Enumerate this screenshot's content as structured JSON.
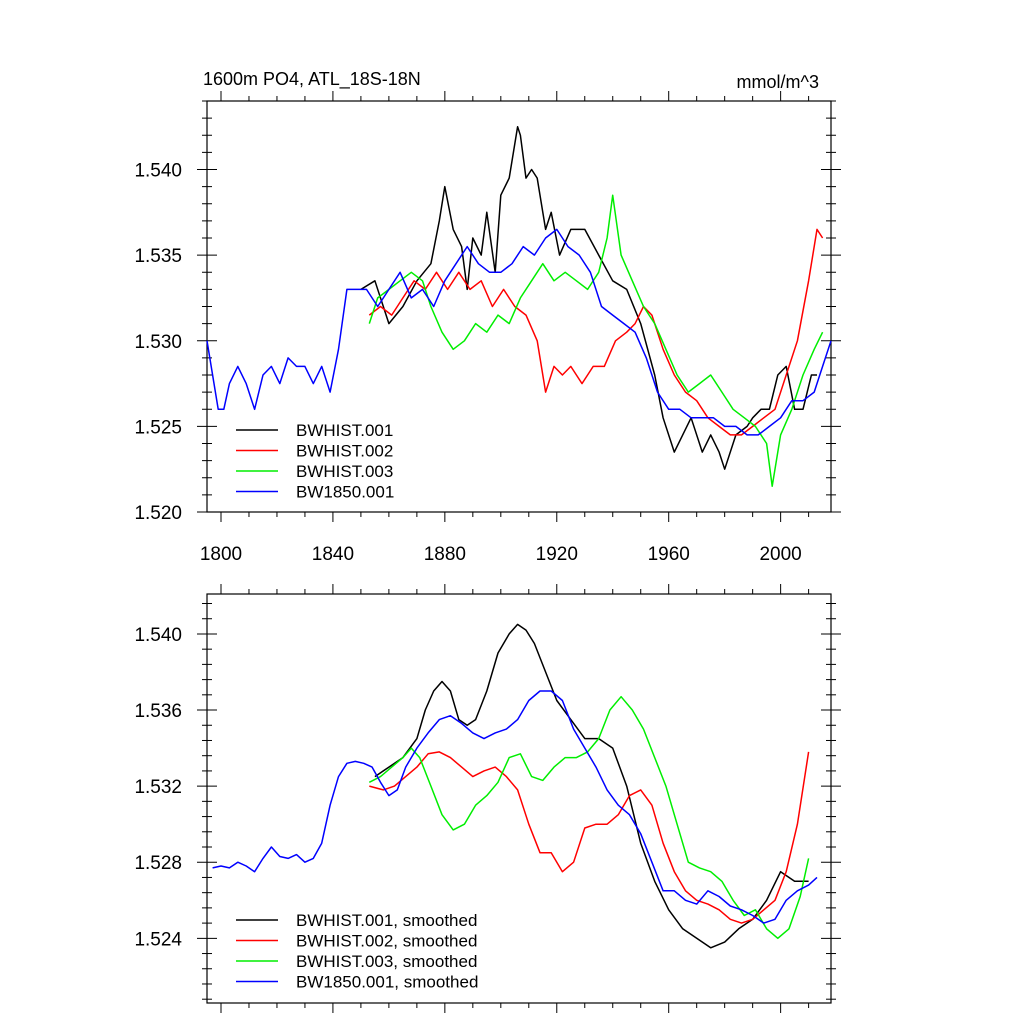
{
  "chart_data": [
    {
      "type": "line",
      "title": "1600m PO4, ATL_18S-18N",
      "units": "mmol/m^3",
      "xlim": [
        1795,
        2018
      ],
      "ylim": [
        1.52,
        1.544
      ],
      "xticks": [
        1800,
        1840,
        1880,
        1920,
        1960,
        2000
      ],
      "yticks": [
        1.52,
        1.525,
        1.53,
        1.535,
        1.54
      ],
      "ytick_labels": [
        "1.520",
        "1.525",
        "1.530",
        "1.535",
        "1.540"
      ],
      "legend": [
        "BWHIST.001",
        "BWHIST.002",
        "BWHIST.003",
        "BW1850.001"
      ],
      "series": [
        {
          "name": "BWHIST.001",
          "color": "#000000",
          "x": [
            1850,
            1855,
            1860,
            1865,
            1870,
            1875,
            1878,
            1880,
            1883,
            1886,
            1888,
            1890,
            1893,
            1895,
            1898,
            1900,
            1903,
            1906,
            1907,
            1909,
            1911,
            1913,
            1916,
            1918,
            1921,
            1925,
            1930,
            1935,
            1940,
            1945,
            1950,
            1955,
            1958,
            1962,
            1965,
            1968,
            1972,
            1975,
            1978,
            1980,
            1984,
            1988,
            1990,
            1993,
            1996,
            1999,
            2002,
            2005,
            2008,
            2011,
            2013
          ],
          "values": [
            1.533,
            1.5335,
            1.531,
            1.532,
            1.5335,
            1.5345,
            1.537,
            1.539,
            1.5365,
            1.5355,
            1.533,
            1.536,
            1.535,
            1.5375,
            1.534,
            1.5385,
            1.5395,
            1.5425,
            1.542,
            1.5395,
            1.54,
            1.5395,
            1.5365,
            1.5375,
            1.535,
            1.5365,
            1.5365,
            1.535,
            1.5335,
            1.533,
            1.531,
            1.528,
            1.5255,
            1.5235,
            1.5245,
            1.5255,
            1.5235,
            1.5245,
            1.5235,
            1.5225,
            1.5245,
            1.525,
            1.5255,
            1.526,
            1.526,
            1.528,
            1.5285,
            1.526,
            1.526,
            1.528,
            1.528
          ]
        },
        {
          "name": "BWHIST.002",
          "color": "#ff0000",
          "x": [
            1853,
            1857,
            1861,
            1865,
            1869,
            1873,
            1877,
            1881,
            1885,
            1889,
            1893,
            1897,
            1901,
            1905,
            1909,
            1913,
            1916,
            1919,
            1922,
            1925,
            1929,
            1933,
            1937,
            1941,
            1945,
            1948,
            1951,
            1954,
            1958,
            1962,
            1966,
            1970,
            1974,
            1978,
            1982,
            1986,
            1990,
            1994,
            1998,
            2002,
            2006,
            2010,
            2013,
            2015
          ],
          "values": [
            1.5315,
            1.532,
            1.5315,
            1.5325,
            1.5335,
            1.533,
            1.534,
            1.533,
            1.534,
            1.533,
            1.5335,
            1.532,
            1.533,
            1.532,
            1.5315,
            1.53,
            1.527,
            1.5285,
            1.528,
            1.5285,
            1.5275,
            1.5285,
            1.5285,
            1.53,
            1.5305,
            1.531,
            1.532,
            1.5315,
            1.5295,
            1.528,
            1.527,
            1.5265,
            1.5255,
            1.525,
            1.5245,
            1.5245,
            1.525,
            1.5255,
            1.526,
            1.528,
            1.53,
            1.5335,
            1.5365,
            1.536
          ]
        },
        {
          "name": "BWHIST.003",
          "color": "#00ee00",
          "x": [
            1853,
            1856,
            1860,
            1864,
            1868,
            1872,
            1875,
            1879,
            1883,
            1887,
            1891,
            1895,
            1899,
            1903,
            1907,
            1911,
            1915,
            1919,
            1923,
            1927,
            1931,
            1935,
            1938,
            1940,
            1943,
            1947,
            1951,
            1955,
            1959,
            1963,
            1967,
            1971,
            1975,
            1979,
            1983,
            1987,
            1991,
            1995,
            1997,
            2000,
            2004,
            2008,
            2012,
            2015
          ],
          "values": [
            1.531,
            1.5325,
            1.533,
            1.5335,
            1.534,
            1.5335,
            1.532,
            1.5305,
            1.5295,
            1.53,
            1.531,
            1.5305,
            1.5315,
            1.531,
            1.5325,
            1.5335,
            1.5345,
            1.5335,
            1.534,
            1.5335,
            1.533,
            1.534,
            1.536,
            1.5385,
            1.535,
            1.5335,
            1.532,
            1.531,
            1.5295,
            1.528,
            1.527,
            1.5275,
            1.528,
            1.527,
            1.526,
            1.5255,
            1.525,
            1.524,
            1.5215,
            1.5245,
            1.526,
            1.528,
            1.5295,
            1.5305
          ]
        },
        {
          "name": "BW1850.001",
          "color": "#0000ff",
          "x": [
            1795,
            1797,
            1799,
            1801,
            1803,
            1806,
            1809,
            1812,
            1815,
            1818,
            1821,
            1824,
            1827,
            1830,
            1833,
            1836,
            1839,
            1842,
            1845,
            1848,
            1852,
            1856,
            1860,
            1864,
            1868,
            1872,
            1876,
            1880,
            1884,
            1888,
            1892,
            1896,
            1900,
            1904,
            1908,
            1912,
            1916,
            1920,
            1924,
            1928,
            1932,
            1936,
            1940,
            1944,
            1948,
            1952,
            1956,
            1960,
            1964,
            1968,
            1972,
            1976,
            1980,
            1984,
            1988,
            1992,
            1996,
            2000,
            2004,
            2008,
            2012,
            2015,
            2018
          ],
          "values": [
            1.53,
            1.528,
            1.526,
            1.526,
            1.5275,
            1.5285,
            1.5275,
            1.526,
            1.528,
            1.5285,
            1.5275,
            1.529,
            1.5285,
            1.5285,
            1.5275,
            1.5285,
            1.527,
            1.5295,
            1.533,
            1.533,
            1.533,
            1.532,
            1.533,
            1.534,
            1.5325,
            1.533,
            1.532,
            1.5335,
            1.5345,
            1.5355,
            1.5345,
            1.534,
            1.534,
            1.5345,
            1.5355,
            1.535,
            1.536,
            1.5365,
            1.5355,
            1.535,
            1.534,
            1.532,
            1.5315,
            1.531,
            1.5305,
            1.529,
            1.527,
            1.526,
            1.526,
            1.5255,
            1.5255,
            1.5255,
            1.525,
            1.525,
            1.5245,
            1.5245,
            1.525,
            1.5255,
            1.5265,
            1.5265,
            1.527,
            1.5285,
            1.53
          ]
        }
      ]
    },
    {
      "type": "line",
      "title": "",
      "xlim": [
        1795,
        2018
      ],
      "ylim": [
        1.5206,
        1.5421
      ],
      "xticks": [
        1800,
        1840,
        1880,
        1920,
        1960,
        2000
      ],
      "yticks": [
        1.524,
        1.528,
        1.532,
        1.536,
        1.54
      ],
      "ytick_labels": [
        "1.524",
        "1.528",
        "1.532",
        "1.536",
        "1.540"
      ],
      "legend": [
        "BWHIST.001, smoothed",
        "BWHIST.002, smoothed",
        "BWHIST.003, smoothed",
        "BW1850.001, smoothed"
      ],
      "series": [
        {
          "name": "BWHIST.001, smoothed",
          "color": "#000000",
          "x": [
            1855,
            1860,
            1865,
            1870,
            1873,
            1876,
            1879,
            1882,
            1885,
            1888,
            1891,
            1895,
            1899,
            1903,
            1906,
            1909,
            1912,
            1916,
            1920,
            1925,
            1930,
            1935,
            1940,
            1945,
            1950,
            1955,
            1960,
            1965,
            1970,
            1975,
            1980,
            1985,
            1990,
            1995,
            2000,
            2005,
            2010
          ],
          "values": [
            1.5325,
            1.533,
            1.5335,
            1.5345,
            1.536,
            1.537,
            1.5375,
            1.537,
            1.5355,
            1.5352,
            1.5355,
            1.537,
            1.539,
            1.54,
            1.5405,
            1.5402,
            1.5395,
            1.538,
            1.5365,
            1.5355,
            1.5345,
            1.5345,
            1.534,
            1.532,
            1.529,
            1.527,
            1.5255,
            1.5245,
            1.524,
            1.5235,
            1.5238,
            1.5245,
            1.525,
            1.526,
            1.5275,
            1.527,
            1.527
          ]
        },
        {
          "name": "BWHIST.002, smoothed",
          "color": "#ff0000",
          "x": [
            1853,
            1858,
            1862,
            1866,
            1870,
            1874,
            1878,
            1882,
            1886,
            1890,
            1894,
            1898,
            1902,
            1906,
            1910,
            1914,
            1918,
            1922,
            1926,
            1930,
            1934,
            1938,
            1942,
            1946,
            1950,
            1954,
            1958,
            1962,
            1966,
            1970,
            1974,
            1978,
            1982,
            1986,
            1990,
            1994,
            1998,
            2002,
            2006,
            2010
          ],
          "values": [
            1.532,
            1.5318,
            1.532,
            1.5325,
            1.533,
            1.5337,
            1.5338,
            1.5335,
            1.533,
            1.5325,
            1.5328,
            1.533,
            1.5325,
            1.5318,
            1.53,
            1.5285,
            1.5285,
            1.5275,
            1.528,
            1.5298,
            1.53,
            1.53,
            1.5305,
            1.5315,
            1.5318,
            1.531,
            1.529,
            1.5275,
            1.5265,
            1.526,
            1.5258,
            1.5255,
            1.525,
            1.5248,
            1.525,
            1.5255,
            1.526,
            1.5275,
            1.53,
            1.5338
          ]
        },
        {
          "name": "BWHIST.003, smoothed",
          "color": "#00ee00",
          "x": [
            1853,
            1857,
            1861,
            1865,
            1868,
            1871,
            1875,
            1879,
            1883,
            1887,
            1891,
            1895,
            1899,
            1903,
            1907,
            1911,
            1915,
            1919,
            1923,
            1927,
            1931,
            1935,
            1939,
            1943,
            1947,
            1951,
            1955,
            1959,
            1963,
            1967,
            1971,
            1975,
            1979,
            1983,
            1987,
            1991,
            1995,
            1999,
            2003,
            2007,
            2010
          ],
          "values": [
            1.5322,
            1.5325,
            1.533,
            1.5335,
            1.534,
            1.5335,
            1.532,
            1.5305,
            1.5297,
            1.53,
            1.531,
            1.5315,
            1.5322,
            1.5335,
            1.5337,
            1.5325,
            1.5323,
            1.533,
            1.5335,
            1.5335,
            1.5338,
            1.5345,
            1.536,
            1.5367,
            1.536,
            1.535,
            1.5335,
            1.532,
            1.53,
            1.528,
            1.5277,
            1.5275,
            1.527,
            1.526,
            1.5252,
            1.5255,
            1.5245,
            1.524,
            1.5245,
            1.5262,
            1.5282
          ]
        },
        {
          "name": "BW1850.001, smoothed",
          "color": "#0000ff",
          "x": [
            1797,
            1800,
            1803,
            1806,
            1809,
            1812,
            1815,
            1818,
            1821,
            1824,
            1827,
            1830,
            1833,
            1836,
            1839,
            1842,
            1845,
            1848,
            1851,
            1854,
            1857,
            1860,
            1863,
            1866,
            1870,
            1874,
            1878,
            1882,
            1886,
            1890,
            1894,
            1898,
            1902,
            1906,
            1910,
            1914,
            1918,
            1922,
            1926,
            1930,
            1934,
            1938,
            1942,
            1946,
            1950,
            1954,
            1958,
            1962,
            1966,
            1970,
            1974,
            1978,
            1982,
            1986,
            1990,
            1994,
            1998,
            2002,
            2006,
            2010,
            2013
          ],
          "values": [
            1.5277,
            1.5278,
            1.5277,
            1.528,
            1.5278,
            1.5275,
            1.5282,
            1.5288,
            1.5283,
            1.5282,
            1.5284,
            1.528,
            1.5282,
            1.529,
            1.531,
            1.5325,
            1.5332,
            1.5333,
            1.5332,
            1.533,
            1.5322,
            1.5315,
            1.5318,
            1.533,
            1.534,
            1.5348,
            1.5355,
            1.5357,
            1.5353,
            1.5348,
            1.5345,
            1.5348,
            1.535,
            1.5355,
            1.5365,
            1.537,
            1.537,
            1.5365,
            1.535,
            1.534,
            1.533,
            1.5318,
            1.531,
            1.5305,
            1.5295,
            1.528,
            1.5265,
            1.5265,
            1.526,
            1.5258,
            1.5265,
            1.5262,
            1.5257,
            1.5255,
            1.5252,
            1.5248,
            1.525,
            1.526,
            1.5265,
            1.5268,
            1.5272
          ]
        }
      ]
    }
  ]
}
